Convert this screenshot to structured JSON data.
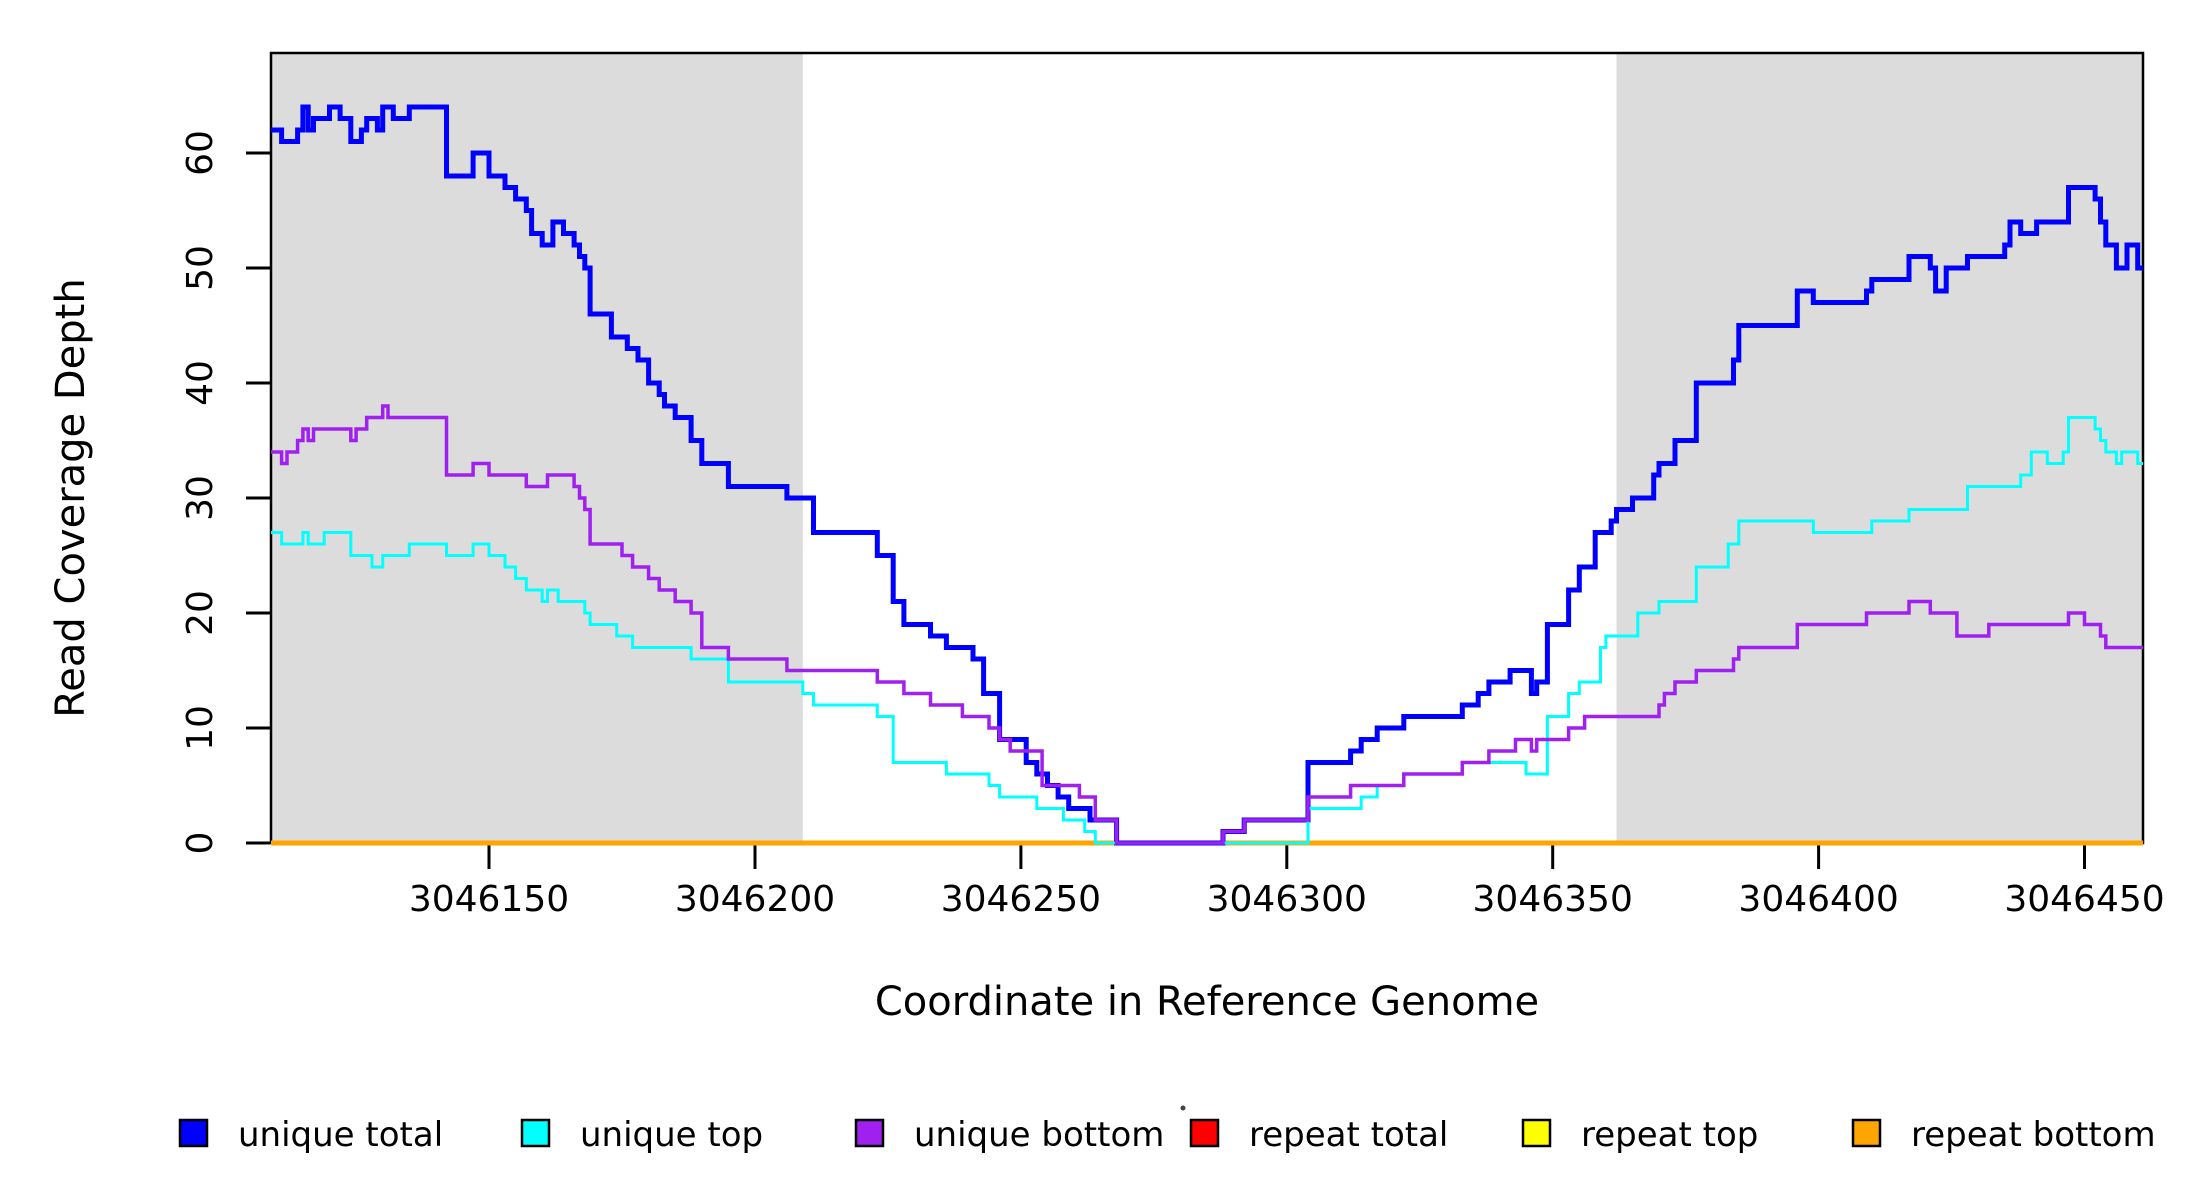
{
  "axes": {
    "x_label": "Coordinate in Reference Genome",
    "y_label": "Read Coverage Depth"
  },
  "chart_data": {
    "type": "line",
    "subtype": "step-after",
    "title": "",
    "xlabel": "Coordinate in Reference Genome",
    "ylabel": "Read Coverage Depth",
    "xlim": [
      3046109,
      3046461
    ],
    "ylim": [
      0,
      68.7
    ],
    "x_ticks": [
      3046150,
      3046200,
      3046250,
      3046300,
      3046350,
      3046400,
      3046450
    ],
    "y_ticks": [
      0,
      10,
      20,
      30,
      40,
      50,
      60
    ],
    "grid": false,
    "legend_position": "bottom",
    "shade_color": "#DCDCDC",
    "shaded_regions": [
      {
        "start": 3046109,
        "end": 3046209
      },
      {
        "start": 3046362,
        "end": 3046461
      }
    ],
    "draw_order": [
      "repeat total",
      "repeat top",
      "repeat bottom",
      "unique total",
      "unique top",
      "unique bottom"
    ],
    "series": [
      {
        "name": "unique total",
        "color": "#0000FF",
        "line_width": 5,
        "points": [
          [
            3046109,
            62
          ],
          [
            3046111,
            61
          ],
          [
            3046114,
            62
          ],
          [
            3046115,
            64
          ],
          [
            3046116,
            62
          ],
          [
            3046117,
            63
          ],
          [
            3046120,
            64
          ],
          [
            3046122,
            63
          ],
          [
            3046124,
            61
          ],
          [
            3046126,
            62
          ],
          [
            3046127,
            63
          ],
          [
            3046129,
            62
          ],
          [
            3046130,
            64
          ],
          [
            3046132,
            63
          ],
          [
            3046135,
            64
          ],
          [
            3046142,
            58
          ],
          [
            3046147,
            60
          ],
          [
            3046150,
            58
          ],
          [
            3046153,
            57
          ],
          [
            3046155,
            56
          ],
          [
            3046157,
            55
          ],
          [
            3046158,
            53
          ],
          [
            3046160,
            52
          ],
          [
            3046162,
            54
          ],
          [
            3046164,
            53
          ],
          [
            3046166,
            52
          ],
          [
            3046167,
            51
          ],
          [
            3046168,
            50
          ],
          [
            3046169,
            46
          ],
          [
            3046173,
            44
          ],
          [
            3046176,
            43
          ],
          [
            3046178,
            42
          ],
          [
            3046180,
            40
          ],
          [
            3046182,
            39
          ],
          [
            3046183,
            38
          ],
          [
            3046185,
            37
          ],
          [
            3046188,
            35
          ],
          [
            3046190,
            33
          ],
          [
            3046195,
            31
          ],
          [
            3046206,
            30
          ],
          [
            3046211,
            27
          ],
          [
            3046223,
            25
          ],
          [
            3046226,
            21
          ],
          [
            3046228,
            19
          ],
          [
            3046233,
            18
          ],
          [
            3046236,
            17
          ],
          [
            3046241,
            16
          ],
          [
            3046243,
            13
          ],
          [
            3046246,
            9
          ],
          [
            3046251,
            7
          ],
          [
            3046253,
            6
          ],
          [
            3046255,
            5
          ],
          [
            3046257,
            4
          ],
          [
            3046259,
            3
          ],
          [
            3046263,
            2
          ],
          [
            3046268,
            0
          ],
          [
            3046288,
            1
          ],
          [
            3046292,
            2
          ],
          [
            3046304,
            7
          ],
          [
            3046312,
            8
          ],
          [
            3046314,
            9
          ],
          [
            3046317,
            10
          ],
          [
            3046322,
            11
          ],
          [
            3046333,
            12
          ],
          [
            3046336,
            13
          ],
          [
            3046338,
            14
          ],
          [
            3046342,
            15
          ],
          [
            3046346,
            13
          ],
          [
            3046347,
            14
          ],
          [
            3046349,
            19
          ],
          [
            3046353,
            22
          ],
          [
            3046355,
            24
          ],
          [
            3046358,
            27
          ],
          [
            3046361,
            28
          ],
          [
            3046362,
            29
          ],
          [
            3046365,
            30
          ],
          [
            3046369,
            32
          ],
          [
            3046370,
            33
          ],
          [
            3046373,
            35
          ],
          [
            3046377,
            40
          ],
          [
            3046384,
            42
          ],
          [
            3046385,
            45
          ],
          [
            3046396,
            48
          ],
          [
            3046399,
            47
          ],
          [
            3046409,
            48
          ],
          [
            3046410,
            49
          ],
          [
            3046417,
            51
          ],
          [
            3046421,
            50
          ],
          [
            3046422,
            48
          ],
          [
            3046424,
            50
          ],
          [
            3046428,
            51
          ],
          [
            3046435,
            52
          ],
          [
            3046436,
            54
          ],
          [
            3046438,
            53
          ],
          [
            3046441,
            54
          ],
          [
            3046447,
            57
          ],
          [
            3046452,
            56
          ],
          [
            3046453,
            54
          ],
          [
            3046454,
            52
          ],
          [
            3046456,
            50
          ],
          [
            3046458,
            52
          ],
          [
            3046460,
            50
          ]
        ]
      },
      {
        "name": "unique top",
        "color": "#00FFFF",
        "line_width": 3,
        "points": [
          [
            3046109,
            27
          ],
          [
            3046111,
            26
          ],
          [
            3046115,
            27
          ],
          [
            3046116,
            26
          ],
          [
            3046119,
            27
          ],
          [
            3046124,
            25
          ],
          [
            3046128,
            24
          ],
          [
            3046130,
            25
          ],
          [
            3046135,
            26
          ],
          [
            3046142,
            25
          ],
          [
            3046147,
            26
          ],
          [
            3046150,
            25
          ],
          [
            3046153,
            24
          ],
          [
            3046155,
            23
          ],
          [
            3046157,
            22
          ],
          [
            3046160,
            21
          ],
          [
            3046161,
            22
          ],
          [
            3046163,
            21
          ],
          [
            3046168,
            20
          ],
          [
            3046169,
            19
          ],
          [
            3046174,
            18
          ],
          [
            3046177,
            17
          ],
          [
            3046188,
            16
          ],
          [
            3046195,
            14
          ],
          [
            3046209,
            13
          ],
          [
            3046211,
            12
          ],
          [
            3046223,
            11
          ],
          [
            3046226,
            7
          ],
          [
            3046236,
            6
          ],
          [
            3046244,
            5
          ],
          [
            3046246,
            4
          ],
          [
            3046253,
            3
          ],
          [
            3046258,
            2
          ],
          [
            3046262,
            1
          ],
          [
            3046264,
            0
          ],
          [
            3046304,
            3
          ],
          [
            3046314,
            4
          ],
          [
            3046317,
            5
          ],
          [
            3046322,
            6
          ],
          [
            3046333,
            7
          ],
          [
            3046345,
            6
          ],
          [
            3046349,
            11
          ],
          [
            3046353,
            13
          ],
          [
            3046355,
            14
          ],
          [
            3046359,
            17
          ],
          [
            3046360,
            18
          ],
          [
            3046366,
            20
          ],
          [
            3046370,
            21
          ],
          [
            3046377,
            24
          ],
          [
            3046383,
            26
          ],
          [
            3046385,
            28
          ],
          [
            3046399,
            27
          ],
          [
            3046410,
            28
          ],
          [
            3046417,
            29
          ],
          [
            3046428,
            31
          ],
          [
            3046438,
            32
          ],
          [
            3046440,
            34
          ],
          [
            3046443,
            33
          ],
          [
            3046446,
            34
          ],
          [
            3046447,
            37
          ],
          [
            3046452,
            36
          ],
          [
            3046453,
            35
          ],
          [
            3046454,
            34
          ],
          [
            3046456,
            33
          ],
          [
            3046457,
            34
          ],
          [
            3046460,
            33
          ]
        ]
      },
      {
        "name": "unique bottom",
        "color": "#A020F0",
        "line_width": 3.5,
        "points": [
          [
            3046109,
            34
          ],
          [
            3046111,
            33
          ],
          [
            3046112,
            34
          ],
          [
            3046114,
            35
          ],
          [
            3046115,
            36
          ],
          [
            3046116,
            35
          ],
          [
            3046117,
            36
          ],
          [
            3046124,
            35
          ],
          [
            3046125,
            36
          ],
          [
            3046127,
            37
          ],
          [
            3046130,
            38
          ],
          [
            3046131,
            37
          ],
          [
            3046142,
            32
          ],
          [
            3046147,
            33
          ],
          [
            3046150,
            32
          ],
          [
            3046157,
            31
          ],
          [
            3046161,
            32
          ],
          [
            3046166,
            31
          ],
          [
            3046167,
            30
          ],
          [
            3046168,
            29
          ],
          [
            3046169,
            26
          ],
          [
            3046175,
            25
          ],
          [
            3046177,
            24
          ],
          [
            3046180,
            23
          ],
          [
            3046182,
            22
          ],
          [
            3046185,
            21
          ],
          [
            3046188,
            20
          ],
          [
            3046190,
            17
          ],
          [
            3046195,
            16
          ],
          [
            3046206,
            15
          ],
          [
            3046223,
            14
          ],
          [
            3046228,
            13
          ],
          [
            3046233,
            12
          ],
          [
            3046239,
            11
          ],
          [
            3046244,
            10
          ],
          [
            3046246,
            9
          ],
          [
            3046248,
            8
          ],
          [
            3046254,
            5
          ],
          [
            3046261,
            4
          ],
          [
            3046264,
            2
          ],
          [
            3046268,
            0
          ],
          [
            3046288,
            1
          ],
          [
            3046292,
            2
          ],
          [
            3046304,
            4
          ],
          [
            3046312,
            5
          ],
          [
            3046322,
            6
          ],
          [
            3046333,
            7
          ],
          [
            3046338,
            8
          ],
          [
            3046343,
            9
          ],
          [
            3046346,
            8
          ],
          [
            3046347,
            9
          ],
          [
            3046353,
            10
          ],
          [
            3046356,
            11
          ],
          [
            3046370,
            12
          ],
          [
            3046371,
            13
          ],
          [
            3046373,
            14
          ],
          [
            3046377,
            15
          ],
          [
            3046384,
            16
          ],
          [
            3046385,
            17
          ],
          [
            3046396,
            19
          ],
          [
            3046409,
            20
          ],
          [
            3046417,
            21
          ],
          [
            3046421,
            20
          ],
          [
            3046426,
            18
          ],
          [
            3046432,
            19
          ],
          [
            3046447,
            20
          ],
          [
            3046450,
            19
          ],
          [
            3046453,
            18
          ],
          [
            3046454,
            17
          ]
        ]
      },
      {
        "name": "repeat total",
        "color": "#FF0000",
        "line_width": 4,
        "points": [
          [
            3046109,
            0
          ]
        ]
      },
      {
        "name": "repeat top",
        "color": "#FFFF00",
        "line_width": 4,
        "points": [
          [
            3046109,
            0
          ]
        ]
      },
      {
        "name": "repeat bottom",
        "color": "#FFA500",
        "line_width": 5,
        "points": [
          [
            3046109,
            0
          ]
        ]
      }
    ]
  },
  "legend": {
    "items": [
      {
        "label": "unique total",
        "color": "#0000FF"
      },
      {
        "label": "unique top",
        "color": "#00FFFF"
      },
      {
        "label": "unique bottom",
        "color": "#A020F0"
      },
      {
        "label": "repeat total",
        "color": "#FF0000"
      },
      {
        "label": "repeat top",
        "color": "#FFFF00"
      },
      {
        "label": "repeat bottom",
        "color": "#FFA500"
      }
    ]
  }
}
